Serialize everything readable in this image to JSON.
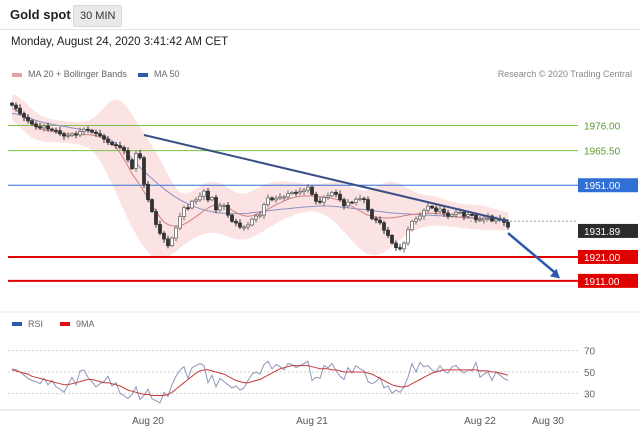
{
  "header": {
    "title": "Gold spot",
    "interval": "30 MIN"
  },
  "datetime": "Monday, August 24, 2020 3:41:42 AM CET",
  "legend": {
    "bb_label": "MA 20 + Bollinger Bands",
    "ma50_label": "MA 50",
    "bb_color": "#e8a0a0",
    "ma50_color": "#2d5aa8"
  },
  "credit": "Research © 2020 Trading Central",
  "colors": {
    "support": "#e00000",
    "resistance": "#7ac142",
    "pivot": "#2f6fd6",
    "trend": "#3a4f86",
    "candle_up": "#6b6b6b",
    "candle_dn": "#333333"
  },
  "chart_data": [
    {
      "type": "candlestick",
      "title": "Gold spot",
      "ylim": [
        1903,
        1990
      ],
      "price_levels": [
        {
          "value": 1976.0,
          "label": "1976.00",
          "role": "resistance"
        },
        {
          "value": 1965.5,
          "label": "1965.50",
          "role": "resistance"
        },
        {
          "value": 1951.0,
          "label": "1951.00",
          "role": "pivot"
        },
        {
          "value": 1921.0,
          "label": "1921.00",
          "role": "support"
        },
        {
          "value": 1911.0,
          "label": "1911.00",
          "role": "support"
        }
      ],
      "last_price": {
        "value": 1931.89,
        "label": "1931.89"
      },
      "dashed_levels": [
        1936.0
      ],
      "trendline": {
        "from": [
          33,
          1972
        ],
        "to": [
          124,
          1936
        ]
      },
      "forecast_arrow": {
        "from": [
          124,
          1931
        ],
        "to": [
          137,
          1912
        ]
      },
      "close": [
        1984.5,
        1983.2,
        1981.0,
        1979.4,
        1978.0,
        1976.6,
        1975.5,
        1975.0,
        1975.8,
        1974.5,
        1974.0,
        1973.8,
        1972.5,
        1971.6,
        1971.8,
        1972.5,
        1972.0,
        1973.5,
        1974.4,
        1974.0,
        1973.2,
        1972.6,
        1971.7,
        1970.3,
        1968.9,
        1968.0,
        1967.6,
        1966.8,
        1965.5,
        1961.6,
        1958.0,
        1964.2,
        1962.5,
        1951.4,
        1945.0,
        1940.0,
        1934.6,
        1930.9,
        1928.5,
        1925.7,
        1928.9,
        1933.1,
        1937.9,
        1941.6,
        1941.5,
        1944.3,
        1944.9,
        1946.4,
        1948.5,
        1944.9,
        1945.9,
        1940.7,
        1942.2,
        1942.6,
        1938.5,
        1935.9,
        1935.2,
        1933.5,
        1933.5,
        1934.4,
        1936.8,
        1938.1,
        1938.5,
        1942.9,
        1945.7,
        1944.9,
        1945.6,
        1946.1,
        1946.1,
        1947.5,
        1948.0,
        1947.8,
        1948.4,
        1949.0,
        1950.2,
        1947.2,
        1944.3,
        1943.9,
        1945.9,
        1946.6,
        1948.0,
        1947.2,
        1945.0,
        1942.4,
        1943.9,
        1943.8,
        1945.1,
        1945.4,
        1945.0,
        1940.8,
        1937.0,
        1936.4,
        1935.3,
        1932.2,
        1930.0,
        1926.8,
        1924.9,
        1924.4,
        1926.8,
        1932.4,
        1935.9,
        1936.9,
        1938.1,
        1940.5,
        1942.2,
        1941.5,
        1940.1,
        1941.0,
        1939.4,
        1938.0,
        1938.7,
        1939.7,
        1939.7,
        1938.0,
        1938.8,
        1938.5,
        1936.6,
        1936.6,
        1937.3,
        1938.1,
        1936.1,
        1936.9,
        1936.8,
        1935.5,
        1933.5
      ],
      "ma20": [
        1983.0,
        1982.6,
        1981.0,
        1979.4,
        1977.9,
        1976.6,
        1975.5,
        1974.7,
        1974.2,
        1973.8,
        1973.5,
        1973.2,
        1972.9,
        1972.6,
        1972.4,
        1972.4,
        1972.3,
        1972.2,
        1972.2,
        1972.2,
        1972.0,
        1971.7,
        1971.3,
        1970.7,
        1969.8,
        1968.6,
        1966.8,
        1964.6,
        1961.9,
        1959.0,
        1955.8,
        1953.5,
        1951.0,
        1948.4,
        1945.5,
        1942.7,
        1940.1,
        1937.6,
        1935.6,
        1934.6,
        1934.0,
        1933.9,
        1934.1,
        1934.7,
        1935.6,
        1936.7,
        1937.9,
        1939.1,
        1940.4,
        1941.5,
        1942.4,
        1942.8,
        1942.8,
        1942.4,
        1941.6,
        1940.5,
        1939.6,
        1938.8,
        1938.2,
        1938.0,
        1938.2,
        1938.7,
        1939.4,
        1940.2,
        1941.0,
        1941.9,
        1942.8,
        1943.6,
        1944.4,
        1945.2,
        1945.7,
        1946.1,
        1946.4,
        1946.5,
        1946.5,
        1946.5,
        1946.4,
        1946.2,
        1946.0,
        1945.8,
        1945.5,
        1945.1,
        1944.6,
        1943.9,
        1943.1,
        1942.2,
        1941.2,
        1940.2,
        1939.3,
        1938.5,
        1938.0,
        1937.6,
        1937.4,
        1937.3,
        1937.3,
        1937.4,
        1937.6,
        1937.9,
        1938.2,
        1938.5,
        1938.7,
        1938.9,
        1939.1,
        1939.2,
        1939.3,
        1939.3,
        1939.2,
        1939.0,
        1938.8,
        1938.5,
        1938.2,
        1937.9,
        1937.6,
        1937.4,
        1937.3,
        1937.2,
        1937.1,
        1937.0,
        1936.9,
        1936.8,
        1936.7,
        1936.6,
        1936.5,
        1936.4,
        1936.2
      ],
      "ma50": [
        1981.0,
        1980.8,
        1980.4,
        1979.9,
        1979.3,
        1978.7,
        1978.1,
        1977.6,
        1977.1,
        1976.8,
        1976.5,
        1976.2,
        1975.9,
        1975.6,
        1975.3,
        1975.0,
        1974.7,
        1974.4,
        1974.1,
        1973.8,
        1973.4,
        1972.9,
        1972.3,
        1971.5,
        1970.6,
        1969.6,
        1968.4,
        1967.1,
        1965.6,
        1963.9,
        1962.1,
        1960.3,
        1958.5,
        1956.8,
        1955.3,
        1953.8,
        1952.3,
        1950.9,
        1949.5,
        1948.2,
        1947.0,
        1945.9,
        1944.9,
        1944.0,
        1943.2,
        1942.5,
        1941.8,
        1941.2,
        1940.7,
        1940.3,
        1939.9,
        1939.6,
        1939.4,
        1939.3,
        1939.2,
        1939.1,
        1939.1,
        1939.1,
        1939.2,
        1939.3,
        1939.5,
        1939.7,
        1939.9,
        1940.1,
        1940.3,
        1940.5,
        1940.7,
        1940.9,
        1941.1,
        1941.2,
        1941.4,
        1941.6,
        1941.7,
        1941.9,
        1942.0,
        1942.1,
        1942.2,
        1942.3,
        1942.3,
        1942.3,
        1942.2,
        1942.1,
        1941.9,
        1941.8,
        1941.6,
        1941.4,
        1941.2,
        1941.0,
        1940.8,
        1940.6,
        1940.4,
        1940.2,
        1940.0,
        1939.8,
        1939.6,
        1939.4,
        1939.3,
        1939.2,
        1939.1,
        1939.0,
        1938.9,
        1938.8,
        1938.7,
        1938.6,
        1938.5,
        1938.4,
        1938.3,
        1938.2,
        1938.1,
        1938.0,
        1937.9,
        1937.8,
        1937.7,
        1937.6,
        1937.5,
        1937.4,
        1937.3,
        1937.2,
        1937.1,
        1937.0,
        1936.9,
        1936.8,
        1936.7,
        1936.6,
        1936.5
      ],
      "bb_upper": [
        1989.0,
        1988.6,
        1987.5,
        1986.0,
        1984.4,
        1982.9,
        1981.5,
        1980.3,
        1979.6,
        1979.1,
        1978.6,
        1978.3,
        1978.0,
        1977.8,
        1977.6,
        1977.5,
        1977.4,
        1977.5,
        1977.7,
        1978.0,
        1978.8,
        1980.0,
        1981.5,
        1983.5,
        1985.3,
        1986.6,
        1987.0,
        1986.5,
        1985.0,
        1983.0,
        1980.5,
        1978.0,
        1975.5,
        1972.9,
        1970.4,
        1967.6,
        1964.8,
        1961.8,
        1958.6,
        1955.4,
        1952.4,
        1949.8,
        1948.0,
        1947.4,
        1947.8,
        1948.6,
        1949.6,
        1950.6,
        1951.5,
        1952.1,
        1952.4,
        1952.3,
        1951.8,
        1951.0,
        1950.0,
        1949.0,
        1948.1,
        1947.5,
        1947.4,
        1947.8,
        1948.6,
        1949.5,
        1950.4,
        1951.1,
        1951.7,
        1952.2,
        1952.5,
        1952.6,
        1952.6,
        1952.5,
        1952.3,
        1952.1,
        1951.9,
        1951.7,
        1951.5,
        1951.4,
        1951.4,
        1951.5,
        1951.7,
        1952.0,
        1952.3,
        1952.4,
        1952.2,
        1951.7,
        1951.0,
        1950.2,
        1949.5,
        1949.0,
        1948.8,
        1949.0,
        1949.6,
        1950.4,
        1951.3,
        1952.0,
        1952.4,
        1952.5,
        1952.2,
        1951.6,
        1950.7,
        1949.7,
        1948.8,
        1948.0,
        1947.4,
        1947.0,
        1946.8,
        1946.6,
        1946.3,
        1945.8,
        1945.2,
        1944.6,
        1944.1,
        1943.6,
        1943.3,
        1943.1,
        1943.0,
        1942.9,
        1942.8,
        1942.6,
        1942.3,
        1941.9,
        1941.5,
        1941.0,
        1940.5,
        1940.0,
        1939.6
      ],
      "bb_lower": [
        1978.0,
        1976.8,
        1975.2,
        1973.6,
        1972.0,
        1970.8,
        1970.0,
        1969.5,
        1969.2,
        1969.0,
        1969.0,
        1969.0,
        1968.9,
        1968.8,
        1968.6,
        1968.4,
        1968.2,
        1967.9,
        1967.4,
        1966.8,
        1965.5,
        1963.6,
        1961.2,
        1958.3,
        1955.0,
        1951.5,
        1947.8,
        1944.0,
        1940.3,
        1936.8,
        1933.4,
        1930.4,
        1927.6,
        1925.0,
        1922.8,
        1921.3,
        1920.6,
        1920.3,
        1920.4,
        1921.0,
        1922.1,
        1923.4,
        1924.8,
        1926.0,
        1927.2,
        1928.3,
        1929.3,
        1930.1,
        1930.7,
        1931.0,
        1931.1,
        1931.0,
        1930.7,
        1930.2,
        1929.5,
        1928.9,
        1928.5,
        1928.3,
        1928.3,
        1928.6,
        1929.2,
        1930.0,
        1931.0,
        1932.0,
        1933.0,
        1934.0,
        1935.0,
        1935.9,
        1936.7,
        1937.5,
        1938.2,
        1938.8,
        1939.3,
        1939.7,
        1940.0,
        1940.1,
        1939.9,
        1939.4,
        1938.7,
        1937.7,
        1936.5,
        1935.0,
        1933.3,
        1931.5,
        1929.6,
        1927.7,
        1925.9,
        1924.4,
        1923.2,
        1922.3,
        1921.8,
        1921.8,
        1922.2,
        1923.0,
        1924.1,
        1925.4,
        1926.8,
        1928.1,
        1929.4,
        1930.6,
        1931.6,
        1932.4,
        1933.0,
        1933.5,
        1933.8,
        1934.0,
        1934.1,
        1934.1,
        1934.0,
        1933.8,
        1933.6,
        1933.4,
        1933.2,
        1933.0,
        1932.8,
        1932.6,
        1932.5,
        1932.4,
        1932.3,
        1932.2,
        1932.1,
        1932.1,
        1932.1,
        1932.2,
        1932.4
      ]
    },
    {
      "type": "line",
      "title": "RSI",
      "series": [
        {
          "name": "RSI",
          "color": "#2d5aa8",
          "values": [
            53,
            52,
            50,
            47,
            44,
            42,
            41,
            39,
            44,
            38,
            42,
            36,
            34,
            31,
            38,
            45,
            38,
            51,
            52,
            45,
            41,
            36,
            39,
            41,
            46,
            37,
            40,
            30,
            28,
            25,
            29,
            36,
            24,
            28,
            34,
            25,
            23,
            21,
            31,
            27,
            38,
            46,
            52,
            55,
            44,
            54,
            56,
            58,
            56,
            40,
            47,
            36,
            44,
            41,
            38,
            35,
            37,
            33,
            35,
            42,
            48,
            50,
            48,
            57,
            60,
            53,
            57,
            55,
            52,
            58,
            57,
            54,
            56,
            58,
            60,
            42,
            45,
            44,
            56,
            54,
            58,
            51,
            46,
            43,
            54,
            49,
            56,
            53,
            51,
            41,
            39,
            41,
            45,
            35,
            37,
            30,
            33,
            31,
            36,
            45,
            58,
            50,
            59,
            55,
            56,
            52,
            50,
            56,
            51,
            49,
            55,
            56,
            52,
            49,
            52,
            51,
            59,
            45,
            48,
            50,
            42,
            50,
            47,
            44,
            42
          ]
        },
        {
          "name": "9MA",
          "color": "#d11",
          "values": [
            52,
            51,
            50,
            49,
            48,
            46,
            45,
            44,
            43,
            42,
            41,
            40,
            39,
            38,
            38,
            39,
            40,
            41,
            42,
            43,
            43,
            42,
            41,
            40,
            40,
            39,
            38,
            37,
            35,
            33,
            32,
            31,
            30,
            29,
            29,
            28,
            28,
            28,
            28,
            29,
            31,
            34,
            37,
            40,
            43,
            46,
            49,
            51,
            52,
            52,
            51,
            50,
            49,
            48,
            46,
            44,
            42,
            41,
            40,
            40,
            41,
            42,
            43,
            45,
            47,
            49,
            51,
            53,
            54,
            55,
            56,
            56,
            56,
            56,
            56,
            55,
            54,
            53,
            53,
            53,
            52,
            52,
            51,
            50,
            50,
            50,
            50,
            50,
            50,
            49,
            48,
            46,
            44,
            42,
            40,
            38,
            37,
            36,
            36,
            37,
            39,
            41,
            43,
            45,
            47,
            49,
            50,
            51,
            52,
            52,
            52,
            52,
            52,
            52,
            52,
            52,
            52,
            51,
            51,
            51,
            50,
            50,
            49,
            48,
            47
          ]
        }
      ],
      "ylim": [
        20,
        80
      ],
      "ticks": [
        "70",
        "50",
        "30"
      ],
      "tick_values": [
        70,
        50,
        30
      ],
      "xticks": [
        {
          "index": 34,
          "label": "Aug 20"
        },
        {
          "index": 75,
          "label": "Aug 21"
        },
        {
          "index": 117,
          "label": "Aug 22"
        },
        {
          "index": 134,
          "label": "Aug 30"
        }
      ]
    }
  ]
}
